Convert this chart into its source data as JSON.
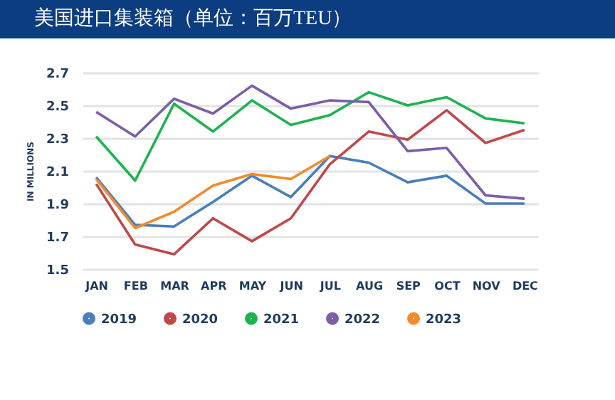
{
  "chart_data": {
    "type": "line",
    "title": "美国进口集装箱（单位：百万TEU）",
    "ylabel": "IN MILLIONS",
    "categories": [
      "JAN",
      "FEB",
      "MAR",
      "APR",
      "MAY",
      "JUN",
      "JUL",
      "AUG",
      "SEP",
      "OCT",
      "NOV",
      "DEC"
    ],
    "series": [
      {
        "name": "2019",
        "color": "#4a7ebb",
        "values": [
          2.06,
          1.77,
          1.76,
          1.91,
          2.07,
          1.94,
          2.19,
          2.15,
          2.03,
          2.07,
          1.9,
          1.9
        ]
      },
      {
        "name": "2020",
        "color": "#c0484a",
        "values": [
          2.02,
          1.65,
          1.59,
          1.81,
          1.67,
          1.81,
          2.14,
          2.34,
          2.29,
          2.47,
          2.27,
          2.35
        ]
      },
      {
        "name": "2021",
        "color": "#1db34f",
        "values": [
          2.31,
          2.04,
          2.51,
          2.34,
          2.53,
          2.38,
          2.44,
          2.58,
          2.5,
          2.55,
          2.42,
          2.39
        ]
      },
      {
        "name": "2022",
        "color": "#7b5ea7",
        "values": [
          2.46,
          2.31,
          2.54,
          2.45,
          2.62,
          2.48,
          2.53,
          2.52,
          2.22,
          2.24,
          1.95,
          1.93
        ]
      },
      {
        "name": "2023",
        "color": "#f28a2e",
        "values": [
          2.05,
          1.75,
          1.85,
          2.01,
          2.08,
          2.05,
          2.19,
          null,
          null,
          null,
          null,
          null
        ]
      }
    ],
    "ylim": [
      1.5,
      2.7
    ],
    "yticks": [
      1.5,
      1.7,
      1.9,
      2.1,
      2.3,
      2.5,
      2.7
    ],
    "grid": "y",
    "legend": "bottom"
  }
}
